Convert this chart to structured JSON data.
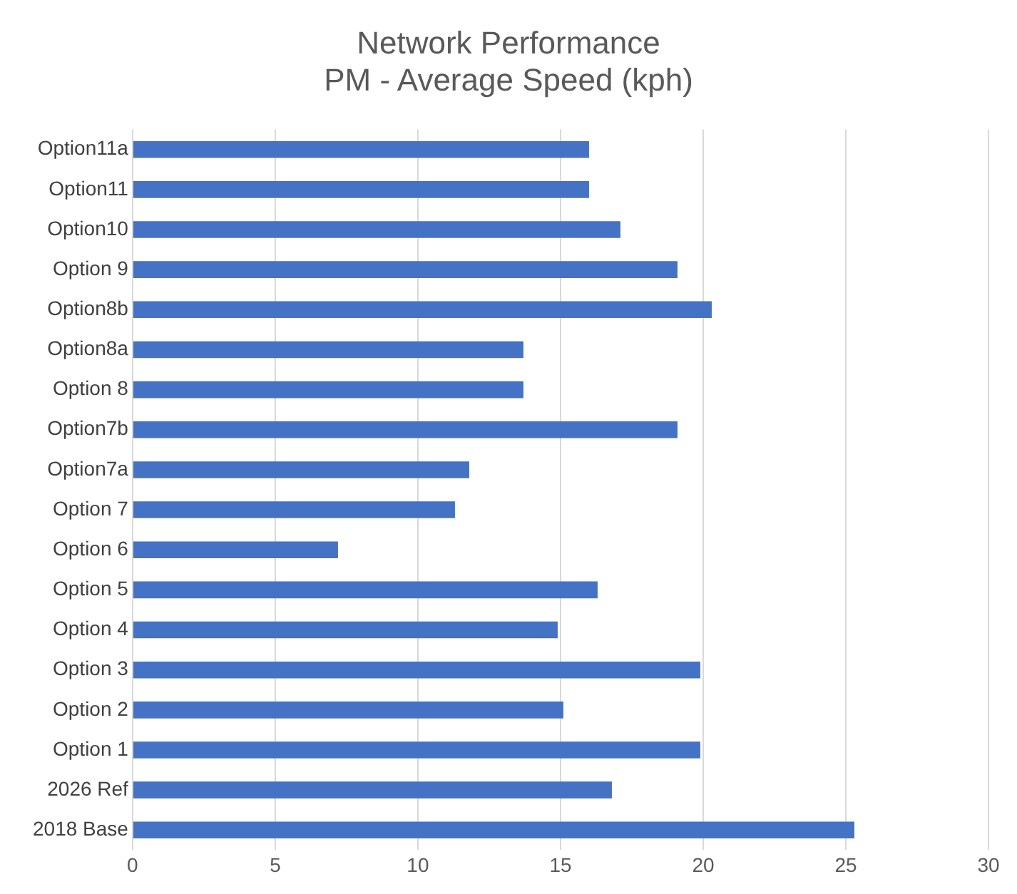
{
  "chart_data": {
    "type": "bar",
    "orientation": "horizontal",
    "title": "Network Performance",
    "subtitle": "PM - Average Speed (kph)",
    "categories": [
      "Option11a",
      "Option11",
      "Option10",
      "Option 9",
      "Option8b",
      "Option8a",
      "Option 8",
      "Option7b",
      "Option7a",
      "Option 7",
      "Option 6",
      "Option 5",
      "Option 4",
      "Option 3",
      "Option 2",
      "Option 1",
      "2026 Ref",
      "2018 Base"
    ],
    "values": [
      16.0,
      16.0,
      17.1,
      19.1,
      20.3,
      13.7,
      13.7,
      19.1,
      11.8,
      11.3,
      7.2,
      16.3,
      14.9,
      19.9,
      15.1,
      19.9,
      16.8,
      25.3
    ],
    "color": "#4472c4",
    "xlim": [
      0,
      30
    ],
    "xticks": [
      0,
      5,
      10,
      15,
      20,
      25,
      30
    ],
    "grid": "x",
    "legend": false
  }
}
